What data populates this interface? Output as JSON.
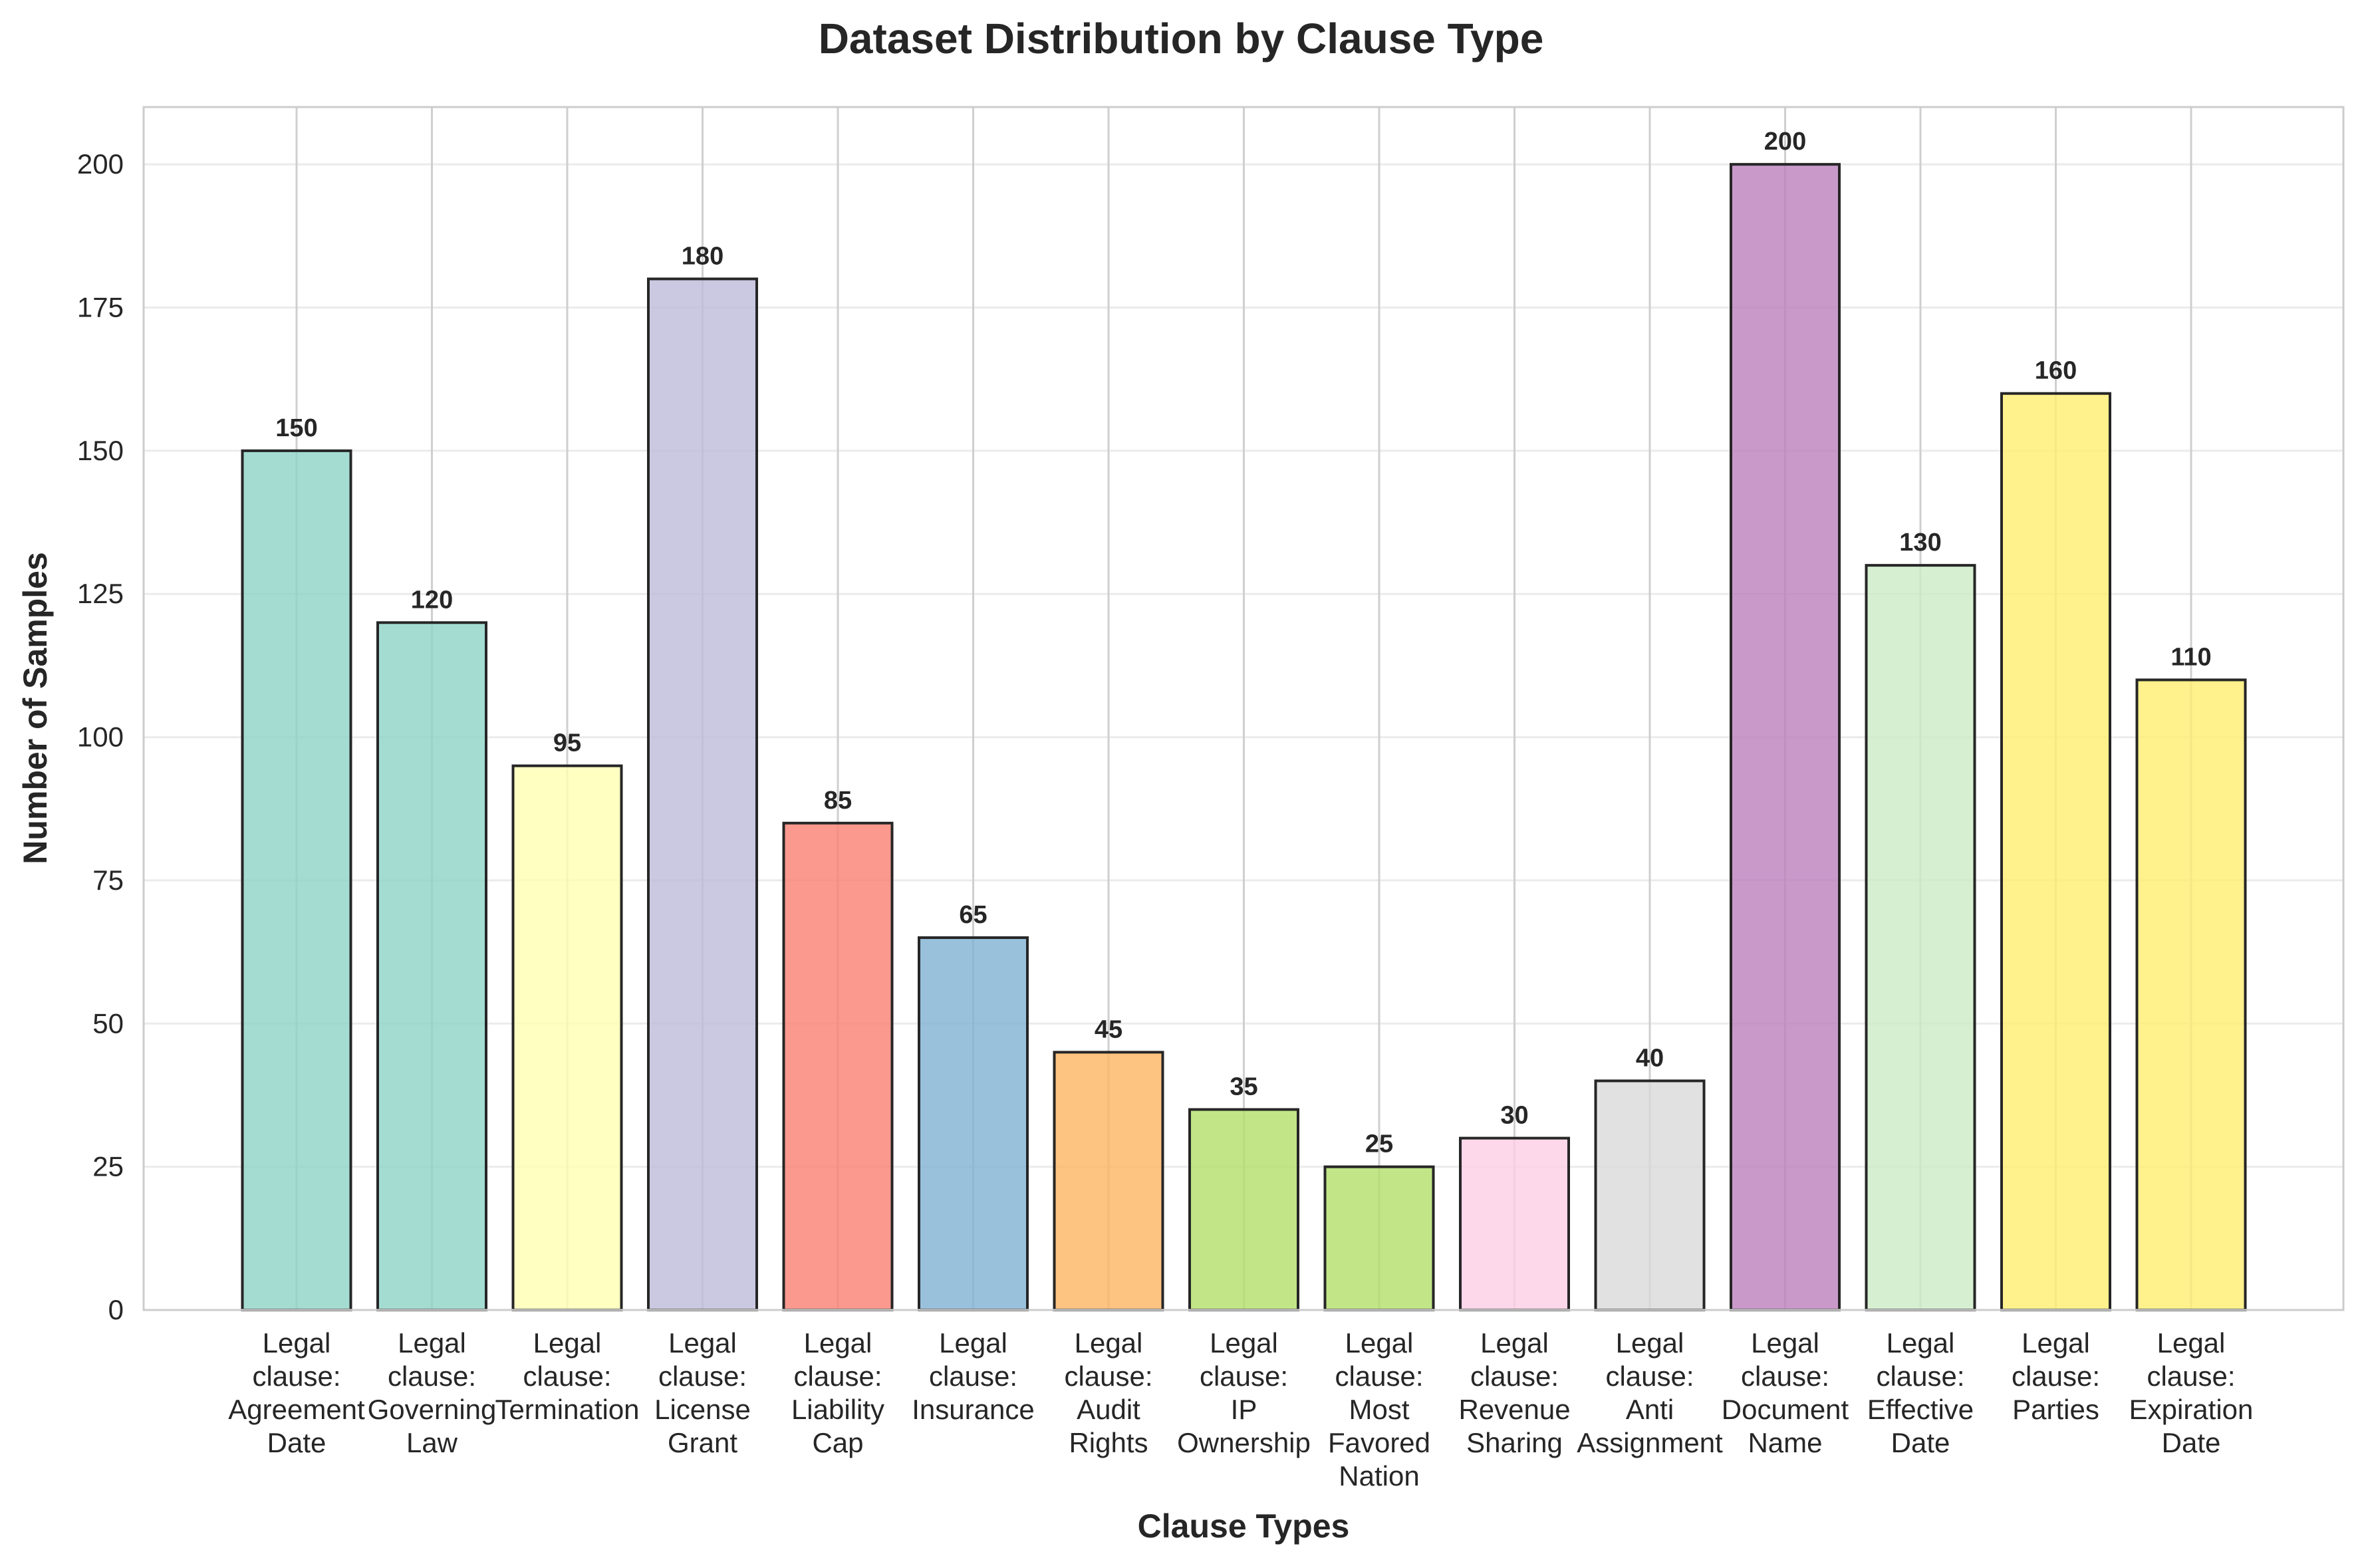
{
  "chart_data": {
    "type": "bar",
    "title": "Dataset Distribution by Clause Type",
    "xlabel": "Clause Types",
    "ylabel": "Number of Samples",
    "ylim": [
      0,
      210
    ],
    "yticks": [
      0,
      25,
      50,
      75,
      100,
      125,
      150,
      175,
      200
    ],
    "grid": true,
    "categories": [
      "Legal clause: Agreement Date",
      "Legal clause: Governing Law",
      "Legal clause: Termination",
      "Legal clause: License Grant",
      "Legal clause: Liability Cap",
      "Legal clause: Insurance",
      "Legal clause: Audit Rights",
      "Legal clause: IP Ownership",
      "Legal clause: Most Favored Nation",
      "Legal clause: Revenue Sharing",
      "Legal clause: Anti Assignment",
      "Legal clause: Document Name",
      "Legal clause: Effective Date",
      "Legal clause: Parties",
      "Legal clause: Expiration Date"
    ],
    "category_lines": [
      [
        "Legal",
        "clause:",
        "Agreement",
        "Date"
      ],
      [
        "Legal",
        "clause:",
        "Governing",
        "Law"
      ],
      [
        "Legal",
        "clause:",
        "Termination"
      ],
      [
        "Legal",
        "clause:",
        "License",
        "Grant"
      ],
      [
        "Legal",
        "clause:",
        "Liability",
        "Cap"
      ],
      [
        "Legal",
        "clause:",
        "Insurance"
      ],
      [
        "Legal",
        "clause:",
        "Audit",
        "Rights"
      ],
      [
        "Legal",
        "clause:",
        "IP",
        "Ownership"
      ],
      [
        "Legal",
        "clause:",
        "Most",
        "Favored",
        "Nation"
      ],
      [
        "Legal",
        "clause:",
        "Revenue",
        "Sharing"
      ],
      [
        "Legal",
        "clause:",
        "Anti",
        "Assignment"
      ],
      [
        "Legal",
        "clause:",
        "Document",
        "Name"
      ],
      [
        "Legal",
        "clause:",
        "Effective",
        "Date"
      ],
      [
        "Legal",
        "clause:",
        "Parties"
      ],
      [
        "Legal",
        "clause:",
        "Expiration",
        "Date"
      ]
    ],
    "values": [
      150,
      120,
      95,
      180,
      85,
      65,
      45,
      35,
      25,
      30,
      40,
      200,
      130,
      160,
      110
    ],
    "colors": [
      "#8dd3c7",
      "#8dd3c7",
      "#ffffb3",
      "#bebada",
      "#fb8072",
      "#80b1d3",
      "#fdb462",
      "#b3de69",
      "#b3de69",
      "#fccde5",
      "#d9d9d9",
      "#bc80bd",
      "#ccebc5",
      "#ffed6f",
      "#ffed6f"
    ]
  }
}
